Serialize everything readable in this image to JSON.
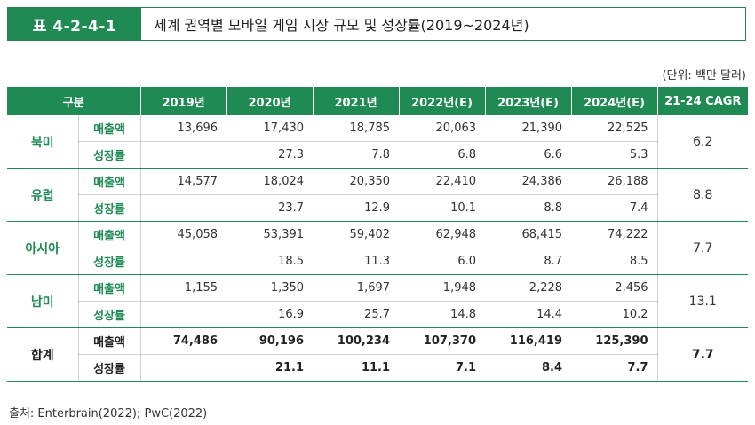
{
  "title": {
    "label": "표 4-2-4-1",
    "text": "세계 권역별 모바일 게임 시장 규모 및 성장률(2019~2024년)"
  },
  "unit": "(단위: 백만 달러)",
  "headers": [
    "구분",
    "2019년",
    "2020년",
    "2021년",
    "2022년(E)",
    "2023년(E)",
    "2024년(E)",
    "21-24 CAGR"
  ],
  "metric_labels": {
    "sales": "매출액",
    "growth": "성장률"
  },
  "rows": [
    {
      "region": "북미",
      "sales": [
        "13,696",
        "17,430",
        "18,785",
        "20,063",
        "21,390",
        "22,525"
      ],
      "growth": [
        "",
        "27.3",
        "7.8",
        "6.8",
        "6.6",
        "5.3"
      ],
      "cagr": "6.2"
    },
    {
      "region": "유럽",
      "sales": [
        "14,577",
        "18,024",
        "20,350",
        "22,410",
        "24,386",
        "26,188"
      ],
      "growth": [
        "",
        "23.7",
        "12.9",
        "10.1",
        "8.8",
        "7.4"
      ],
      "cagr": "8.8"
    },
    {
      "region": "아시아",
      "sales": [
        "45,058",
        "53,391",
        "59,402",
        "62,948",
        "68,415",
        "74,222"
      ],
      "growth": [
        "",
        "18.5",
        "11.3",
        "6.0",
        "8.7",
        "8.5"
      ],
      "cagr": "7.7"
    },
    {
      "region": "남미",
      "sales": [
        "1,155",
        "1,350",
        "1,697",
        "1,948",
        "2,228",
        "2,456"
      ],
      "growth": [
        "",
        "16.9",
        "25.7",
        "14.8",
        "14.4",
        "10.2"
      ],
      "cagr": "13.1"
    },
    {
      "region": "합계",
      "sales": [
        "74,486",
        "90,196",
        "100,234",
        "107,370",
        "116,419",
        "125,390"
      ],
      "growth": [
        "",
        "21.1",
        "11.1",
        "7.1",
        "8.4",
        "7.7"
      ],
      "cagr": "7.7"
    }
  ],
  "source": "출처: Enterbrain(2022); PwC(2022)"
}
